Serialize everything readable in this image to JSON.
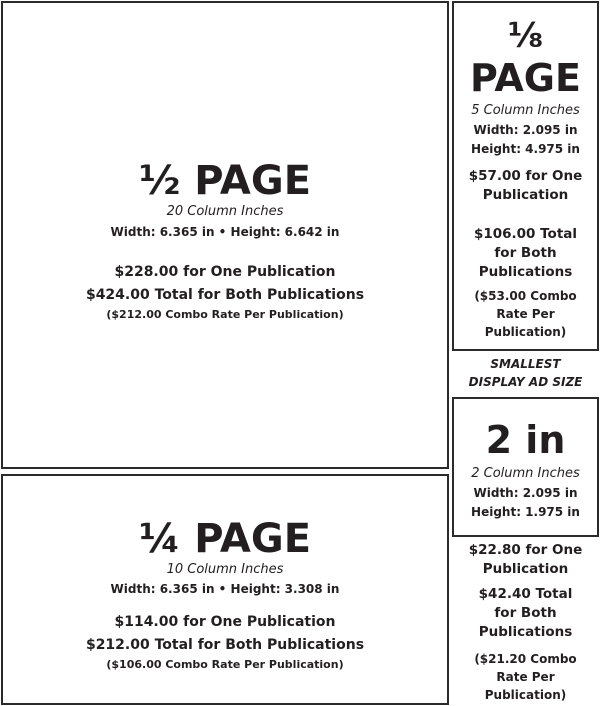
{
  "half_page": {
    "title": "½ PAGE",
    "column_inches": "20 Column Inches",
    "dimensions": "Width: 6.365 in • Height: 6.642 in",
    "one_pub": "$228.00 for One Publication",
    "both_pubs": "$424.00 Total for Both Publications",
    "combo": "($212.00 Combo Rate Per Publication)"
  },
  "quarter_page": {
    "title": "¼ PAGE",
    "column_inches": "10 Column Inches",
    "dimensions": "Width: 6.365 in • Height: 3.308 in",
    "one_pub": "$114.00 for One Publication",
    "both_pubs": "$212.00 Total for Both Publications",
    "combo": "($106.00 Combo Rate Per Publication)"
  },
  "eighth_page": {
    "title_fraction": "⅛",
    "title_word": "PAGE",
    "column_inches": "5 Column Inches",
    "width": "Width: 2.095 in",
    "height": "Height: 4.975 in",
    "one_pub": [
      "$57.00 for One",
      "Publication"
    ],
    "both_pubs": [
      "$106.00 Total",
      "for Both",
      "Publications"
    ],
    "combo": [
      "($53.00 Combo",
      "Rate Per",
      "Publication)"
    ]
  },
  "smallest_label": [
    "SMALLEST",
    "DISPLAY AD SIZE"
  ],
  "two_inch": {
    "title": "2 in",
    "column_inches": "2 Column Inches",
    "width": "Width: 2.095 in",
    "height": "Height: 1.975 in",
    "one_pub": [
      "$22.80 for One",
      "Publication"
    ],
    "both_pubs": [
      "$42.40 Total",
      "for Both",
      "Publications"
    ],
    "combo": [
      "($21.20 Combo",
      "Rate Per",
      "Publication)"
    ]
  }
}
